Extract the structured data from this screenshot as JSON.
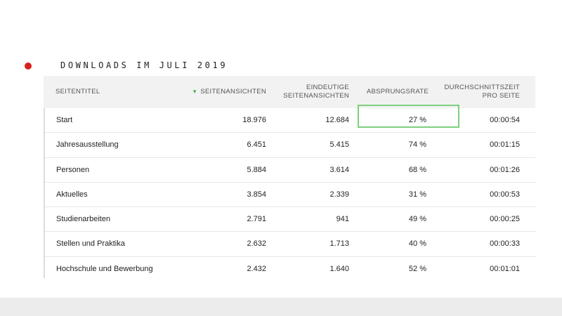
{
  "heading": "DOWNLOADS IM JULI 2019",
  "colors": {
    "accent_dot": "#d9221c",
    "sort_arrow": "#4cae4f",
    "highlight_border": "#7dcf7d",
    "header_bg": "#f2f2f2"
  },
  "table": {
    "columns": {
      "title": "SEITENTITEL",
      "views": "SEITENANSICHTEN",
      "unique_line1": "EINDEUTIGE",
      "unique_line2": "SEITENANSICHTEN",
      "bounce": "ABSPRUNGSRATE",
      "time_line1": "DURCHSCHNITTSZEIT",
      "time_line2": "PRO SEITE"
    },
    "sort_icon": "sort-descending-triangle",
    "rows": [
      {
        "title": "Start",
        "views": "18.976",
        "unique": "12.684",
        "bounce": "27 %",
        "time": "00:00:54"
      },
      {
        "title": "Jahresausstellung",
        "views": "6.451",
        "unique": "5.415",
        "bounce": "74 %",
        "time": "00:01:15"
      },
      {
        "title": "Personen",
        "views": "5.884",
        "unique": "3.614",
        "bounce": "68 %",
        "time": "00:01:26"
      },
      {
        "title": "Aktuelles",
        "views": "3.854",
        "unique": "2.339",
        "bounce": "31 %",
        "time": "00:00:53"
      },
      {
        "title": "Studienarbeiten",
        "views": "2.791",
        "unique": "941",
        "bounce": "49 %",
        "time": "00:00:25"
      },
      {
        "title": "Stellen und Praktika",
        "views": "2.632",
        "unique": "1.713",
        "bounce": "40 %",
        "time": "00:00:33"
      },
      {
        "title": "Hochschule und Bewerbung",
        "views": "2.432",
        "unique": "1.640",
        "bounce": "52 %",
        "time": "00:01:01"
      }
    ]
  }
}
